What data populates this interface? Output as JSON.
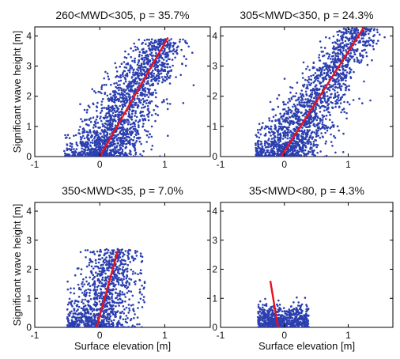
{
  "figure": {
    "ylabel": "Significant wave height [m]",
    "xlabel": "Surface elevation [m]"
  },
  "colors": {
    "scatter": "#2b3fb0",
    "fit_line": "#e8101e",
    "axes": "#000000"
  },
  "chart_data": [
    {
      "type": "scatter",
      "title": "260<MWD<305, p = 35.7%",
      "xlim": [
        -1,
        1.7
      ],
      "ylim": [
        0,
        4.3
      ],
      "xticks": [
        "-1",
        "0",
        "1"
      ],
      "yticks": [
        "0",
        "1",
        "2",
        "3",
        "4"
      ],
      "ylabel": "Significant wave height [m]",
      "xlabel": "",
      "cloud": {
        "x_min": -0.55,
        "x_max": 1.65,
        "y_max": 3.9,
        "density": "high"
      },
      "fit_line": [
        [
          0,
          0
        ],
        [
          1.05,
          3.95
        ]
      ]
    },
    {
      "type": "scatter",
      "title": "305<MWD<350, p = 24.3%",
      "xlim": [
        -1,
        1.7
      ],
      "ylim": [
        0,
        4.3
      ],
      "xticks": [
        "-1",
        "0",
        "1"
      ],
      "yticks": [
        "0",
        "1",
        "2",
        "3",
        "4"
      ],
      "ylabel": "",
      "xlabel": "",
      "cloud": {
        "x_min": -0.45,
        "x_max": 1.65,
        "y_max": 4.3,
        "density": "high"
      },
      "fit_line": [
        [
          -0.05,
          0
        ],
        [
          1.25,
          4.3
        ]
      ]
    },
    {
      "type": "scatter",
      "title": "350<MWD<35, p = 7.0%",
      "xlim": [
        -1,
        1.7
      ],
      "ylim": [
        0,
        4.3
      ],
      "xticks": [
        "-1",
        "0",
        "1"
      ],
      "yticks": [
        "0",
        "1",
        "2",
        "3",
        "4"
      ],
      "ylabel": "Significant wave height [m]",
      "xlabel": "Surface elevation [m]",
      "cloud": {
        "x_min": -0.5,
        "x_max": 0.7,
        "y_max": 2.7,
        "density": "medium"
      },
      "fit_line": [
        [
          -0.05,
          0
        ],
        [
          0.28,
          2.65
        ]
      ]
    },
    {
      "type": "scatter",
      "title": "35<MWD<80, p = 4.3%",
      "xlim": [
        -1,
        1.7
      ],
      "ylim": [
        0,
        4.3
      ],
      "xticks": [
        "-1",
        "0",
        "1"
      ],
      "yticks": [
        "0",
        "1",
        "2",
        "3",
        "4"
      ],
      "ylabel": "",
      "xlabel": "Surface elevation [m]",
      "cloud": {
        "x_min": -0.42,
        "x_max": 0.38,
        "y_max": 1.05,
        "density": "low"
      },
      "fit_line": [
        [
          -0.22,
          1.6
        ],
        [
          -0.1,
          0
        ]
      ]
    }
  ]
}
